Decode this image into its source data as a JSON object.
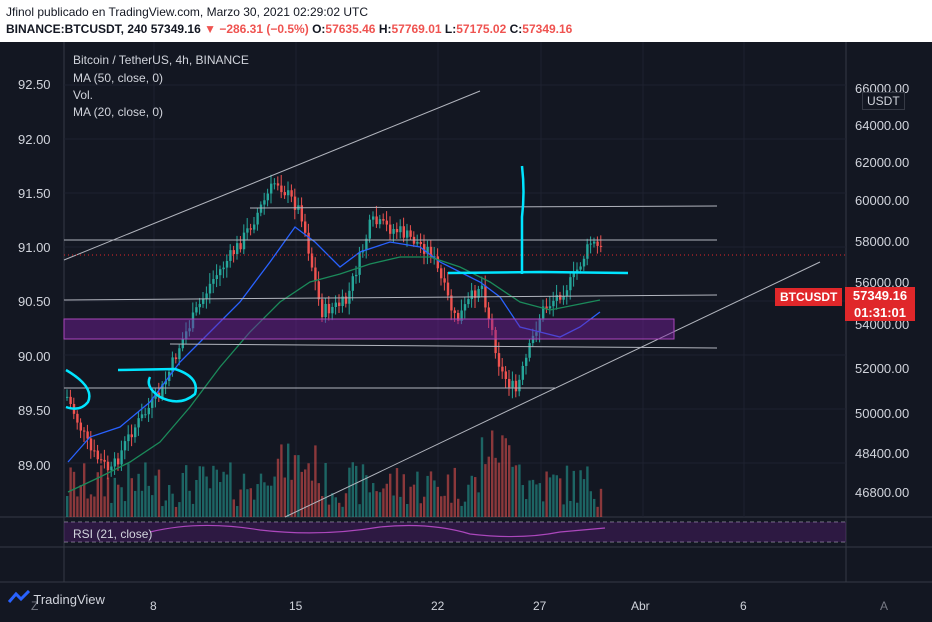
{
  "header": {
    "line1": "Jfinol publicado en TradingView.com, Marzo 30, 2021 02:29:02 UTC",
    "symbol": "BINANCE:BTCUSDT, 240",
    "last": "57349.16",
    "change": "▼ −286.31 (−0.5%)",
    "o_label": "O:",
    "o_val": "57635.46",
    "h_label": "H:",
    "h_val": "57769.01",
    "l_label": "L:",
    "l_val": "57175.02",
    "c_label": "C:",
    "c_val": "57349.16"
  },
  "legend": {
    "title": "Bitcoin / TetherUS, 4h, BINANCE",
    "ma50": "MA (50, close, 0)",
    "vol": "Vol.",
    "ma20": "MA (20, close, 0)",
    "rsi": "RSI (21, close)"
  },
  "price_tag": {
    "symbol": "BTCUSDT",
    "price": "57349.16",
    "countdown": "01:31:01",
    "currency": "USDT"
  },
  "colors": {
    "up": "#26a69a",
    "down": "#ef5350",
    "tag": "#e0272a",
    "cyan": "#00e5ff"
  },
  "chart_data": {
    "type": "candlestick",
    "left_axis": [
      "92.50",
      "92.00",
      "91.50",
      "91.00",
      "90.50",
      "90.00",
      "89.50",
      "89.00"
    ],
    "right_axis": [
      "66000.00",
      "64000.00",
      "62000.00",
      "60000.00",
      "58000.00",
      "56000.00",
      "54000.00",
      "52000.00",
      "50000.00",
      "48400.00",
      "46800.00"
    ],
    "x_labels": [
      "Z",
      "8",
      "15",
      "22",
      "27",
      "Abr",
      "6",
      "A"
    ]
  },
  "footer": {
    "brand": "TradingView"
  }
}
